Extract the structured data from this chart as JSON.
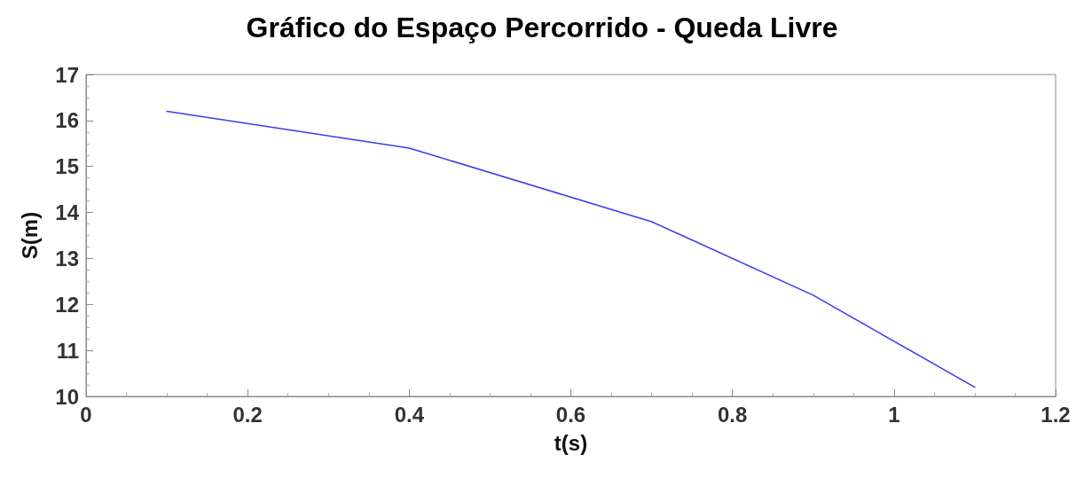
{
  "chart_data": {
    "type": "line",
    "title": "Gráfico do Espaço Percorrido - Queda Livre",
    "xlabel": "t(s)",
    "ylabel": "S(m)",
    "x": [
      0.1,
      0.4,
      0.7,
      0.9,
      1.1
    ],
    "series": [
      {
        "color": "#3a3aee",
        "values": [
          16.2,
          15.4,
          13.8,
          12.2,
          10.2
        ]
      }
    ],
    "xlim": [
      0,
      1.2
    ],
    "xticks": [
      0,
      0.2,
      0.4,
      0.6,
      0.8,
      1,
      1.2
    ],
    "ylim": [
      10,
      17
    ],
    "yticks": [
      10,
      11,
      12,
      13,
      14,
      15,
      16,
      17
    ],
    "grid": false,
    "marker": "none",
    "line_style": "solid"
  }
}
